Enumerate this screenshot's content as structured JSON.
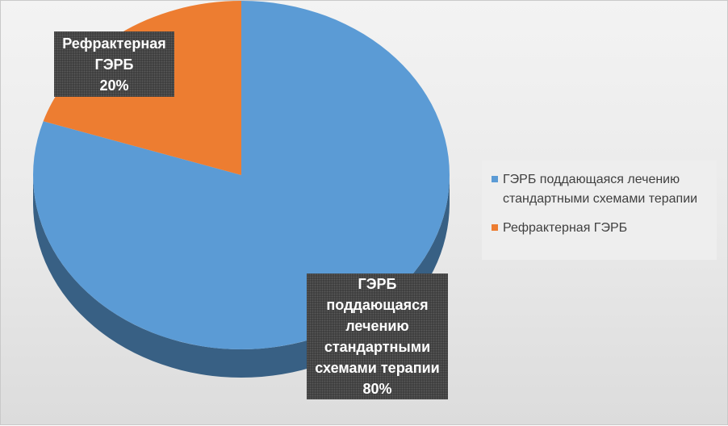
{
  "chart_data": {
    "type": "pie",
    "title": "",
    "categories": [
      "ГЭРБ поддающаяся лечению стандартными схемами терапии",
      "Рефрактерная ГЭРБ"
    ],
    "values": [
      80,
      20
    ],
    "value_labels": [
      "80%",
      "20%"
    ],
    "colors": [
      "#5b9bd5",
      "#ed7d31"
    ],
    "style": "3d",
    "legend": "right",
    "data_labels": [
      {
        "lines": [
          "ГЭРБ",
          "поддающаяся",
          "лечению",
          "стандартными",
          "схемами терапии",
          "80%"
        ]
      },
      {
        "lines": [
          "Рефрактерная",
          "ГЭРБ",
          "20%"
        ]
      }
    ]
  }
}
